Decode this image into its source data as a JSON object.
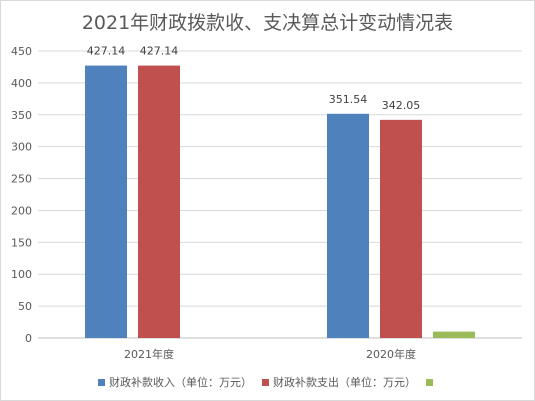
{
  "chart_data": {
    "type": "bar",
    "title": "2021年财政拨款收、支决算总计变动情况表",
    "categories": [
      "2021年度",
      "2020年度"
    ],
    "series": [
      {
        "name": "财政补款收入（单位：万元）",
        "color": "#4f81bd",
        "values": [
          427.14,
          351.54
        ],
        "labels": [
          "427.14",
          "351.54"
        ]
      },
      {
        "name": "财政补款支出（单位：万元）",
        "color": "#c0504d",
        "values": [
          427.14,
          342.05
        ],
        "labels": [
          "427.14",
          "342.05"
        ]
      },
      {
        "name": "",
        "color": "#9bbb59",
        "values": [
          0,
          10
        ],
        "labels": [
          "",
          ""
        ]
      }
    ],
    "ylim": [
      0,
      450
    ],
    "yticks": [
      "0",
      "50",
      "100",
      "150",
      "200",
      "250",
      "300",
      "350",
      "400",
      "450"
    ],
    "grid": true,
    "legend_position": "bottom"
  }
}
